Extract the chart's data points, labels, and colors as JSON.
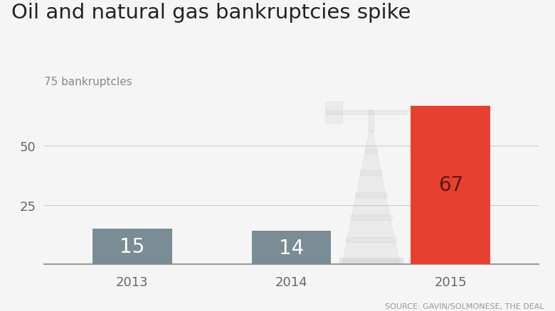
{
  "title": "Oil and natural gas bankruptcies spike",
  "ylabel_text": "75 bankruptcles",
  "categories": [
    "2013",
    "2014",
    "2015"
  ],
  "values": [
    15,
    14,
    67
  ],
  "bar_colors": [
    "#7a8c94",
    "#7a8c94",
    "#e84030"
  ],
  "ylim": [
    0,
    75
  ],
  "yticks": [
    25,
    50
  ],
  "source_text": "SOURCE: GAVIN/SOLMONESE, THE DEAL",
  "bg_color": "#f5f5f5",
  "title_fontsize": 21,
  "bar_label_fontsize": 20,
  "tick_fontsize": 13,
  "source_fontsize": 8,
  "ylabel_fontsize": 11,
  "bar_label_colors": [
    "#ffffff",
    "#ffffff",
    "#5a1a10"
  ],
  "grid_color": "#cccccc",
  "bottom_line_color": "#999999",
  "tick_color": "#666666"
}
